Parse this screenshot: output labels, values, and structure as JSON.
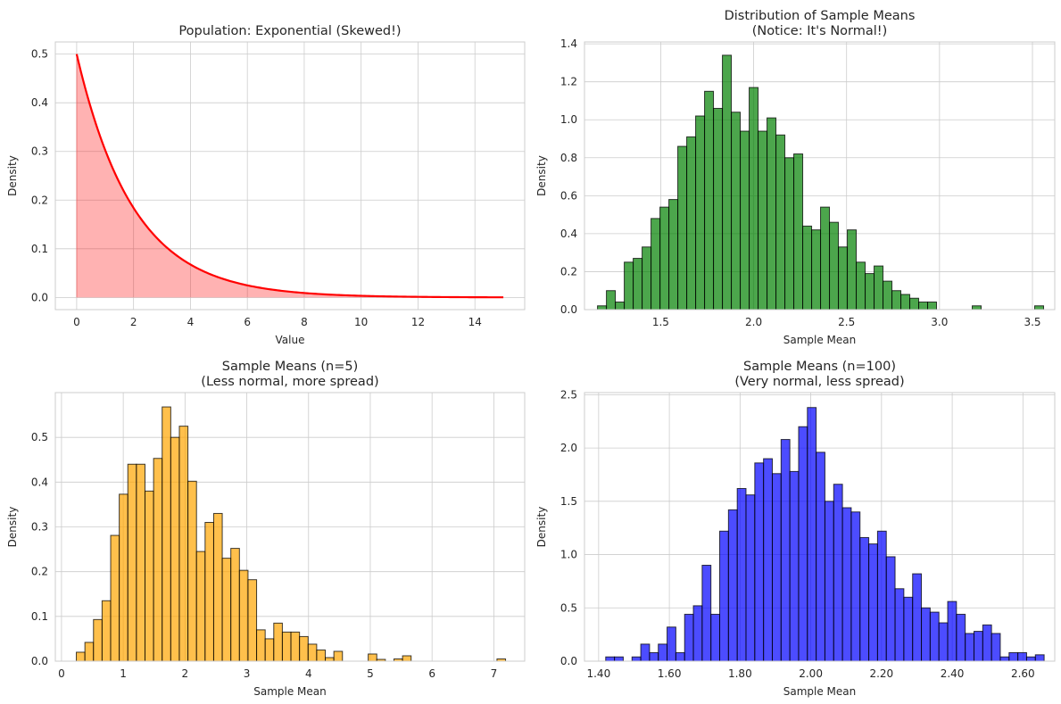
{
  "chart_data": [
    {
      "type": "line",
      "title": "Population: Exponential (Skewed!)",
      "xlabel": "Value",
      "ylabel": "Density",
      "xlim": [
        -0.75,
        15.75
      ],
      "ylim": [
        -0.025,
        0.525
      ],
      "xticks": [
        0,
        2,
        4,
        6,
        8,
        10,
        12,
        14
      ],
      "yticks": [
        0.0,
        0.1,
        0.2,
        0.3,
        0.4,
        0.5
      ],
      "series": [
        {
          "function": "0.5*exp(-0.5*x)",
          "x_range": [
            0,
            15
          ],
          "line_color": "#ff0000",
          "fill_color": "#ff0000",
          "fill_alpha": 0.3
        }
      ],
      "grid": true
    },
    {
      "type": "bar",
      "title": "Distribution of Sample Means\n(Notice: It's Normal!)",
      "xlabel": "Sample Mean",
      "ylabel": "Density",
      "color": "#008000",
      "alpha": 0.7,
      "xlim": [
        1.09,
        3.62
      ],
      "ylim": [
        0,
        1.41
      ],
      "xticks": [
        1.5,
        2.0,
        2.5,
        3.0,
        3.5
      ],
      "yticks": [
        0.0,
        0.2,
        0.4,
        0.6,
        0.8,
        1.0,
        1.2,
        1.4
      ],
      "grid": true,
      "bins_start": 1.16,
      "bin_width": 0.048,
      "values": [
        0.02,
        0.1,
        0.04,
        0.25,
        0.27,
        0.33,
        0.48,
        0.54,
        0.58,
        0.86,
        0.91,
        1.02,
        1.15,
        1.06,
        1.34,
        1.04,
        0.94,
        1.17,
        0.94,
        1.01,
        0.92,
        0.8,
        0.82,
        0.44,
        0.42,
        0.54,
        0.46,
        0.33,
        0.42,
        0.25,
        0.19,
        0.23,
        0.15,
        0.1,
        0.08,
        0.06,
        0.04,
        0.04,
        0.0,
        0.0,
        0.0,
        0.0,
        0.02,
        0.0,
        0.0,
        0.0,
        0.0,
        0.0,
        0.0,
        0.02
      ]
    },
    {
      "type": "bar",
      "title": "Sample Means (n=5)\n(Less normal, more spread)",
      "xlabel": "Sample Mean",
      "ylabel": "Density",
      "color": "#ffa500",
      "alpha": 0.7,
      "xlim": [
        -0.1,
        7.5
      ],
      "ylim": [
        0,
        0.6
      ],
      "xticks": [
        0,
        1,
        2,
        3,
        4,
        5,
        6,
        7
      ],
      "yticks": [
        0.0,
        0.1,
        0.2,
        0.3,
        0.4,
        0.5
      ],
      "grid": true,
      "bins_start": 0.24,
      "bin_width": 0.139,
      "values": [
        0.02,
        0.042,
        0.093,
        0.135,
        0.281,
        0.373,
        0.44,
        0.44,
        0.38,
        0.453,
        0.568,
        0.5,
        0.525,
        0.402,
        0.245,
        0.31,
        0.33,
        0.23,
        0.252,
        0.203,
        0.182,
        0.07,
        0.05,
        0.085,
        0.065,
        0.065,
        0.055,
        0.038,
        0.025,
        0.008,
        0.022,
        0.0,
        0.0,
        0.0,
        0.016,
        0.004,
        0.0,
        0.005,
        0.012,
        0.0,
        0.0,
        0.0,
        0.0,
        0.0,
        0.0,
        0.0,
        0.0,
        0.0,
        0.0,
        0.005
      ]
    },
    {
      "type": "bar",
      "title": "Sample Means (n=100)\n(Very normal, less spread)",
      "xlabel": "Sample Mean",
      "ylabel": "Density",
      "color": "#0000ff",
      "alpha": 0.7,
      "xlim": [
        1.36,
        2.69
      ],
      "ylim": [
        0,
        2.52
      ],
      "xticks": [
        1.4,
        1.6,
        1.8,
        2.0,
        2.2,
        2.4,
        2.6
      ],
      "yticks": [
        0.0,
        0.5,
        1.0,
        1.5,
        2.0,
        2.5
      ],
      "grid": true,
      "bins_start": 1.42,
      "bin_width": 0.0248,
      "values": [
        0.04,
        0.04,
        0.0,
        0.04,
        0.16,
        0.08,
        0.16,
        0.32,
        0.08,
        0.44,
        0.52,
        0.9,
        0.44,
        1.22,
        1.42,
        1.62,
        1.56,
        1.86,
        1.9,
        1.76,
        2.08,
        1.78,
        2.2,
        2.38,
        1.96,
        1.5,
        1.66,
        1.44,
        1.4,
        1.16,
        1.1,
        1.22,
        0.98,
        0.68,
        0.6,
        0.82,
        0.5,
        0.46,
        0.36,
        0.56,
        0.44,
        0.26,
        0.28,
        0.34,
        0.26,
        0.04,
        0.08,
        0.08,
        0.04,
        0.06
      ]
    }
  ]
}
